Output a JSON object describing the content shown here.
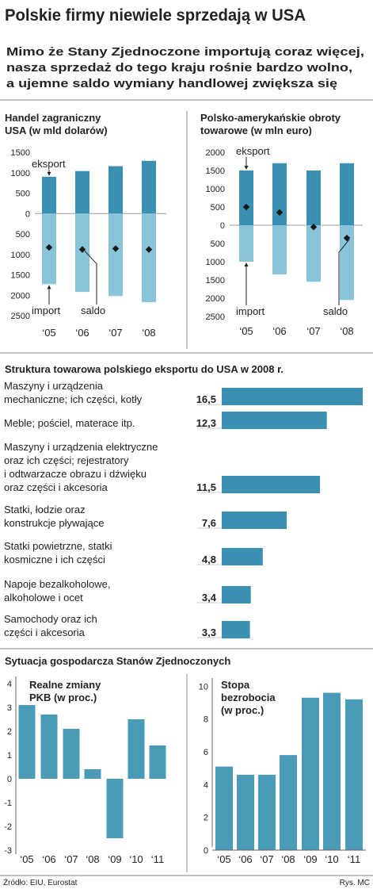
{
  "title": "Polskie firmy niewiele sprzedają w USA",
  "subtitle": [
    "Mimo że Stany Zjednoczone importują coraz więcej,",
    "nasza sprzedaż do tego kraju rośnie bardzo wolno,",
    "a ujemne saldo wymiany handlowej zwiększa się"
  ],
  "section_title": "Sytuacja gospodarcza Stanów Zjednoczonych",
  "source": "Źródło: EIU, Eurostat",
  "credit": "Rys. MC",
  "chart_data": [
    {
      "type": "bar",
      "title": [
        "Handel zagraniczny",
        "USA (w mld dolarów)"
      ],
      "categories": [
        "‘05",
        "‘06",
        "‘07",
        "‘08"
      ],
      "series": [
        {
          "name": "eksport",
          "color": "#3b8fb0",
          "values": [
            900,
            1040,
            1160,
            1290
          ]
        },
        {
          "name": "import",
          "color": "#8ac4da",
          "values": [
            -1730,
            -1920,
            -2020,
            -2170
          ]
        },
        {
          "name": "saldo",
          "color": "#1a1a1a",
          "marker": "diamond",
          "values": [
            -830,
            -880,
            -860,
            -880
          ]
        }
      ],
      "ylim": [
        -2500,
        1500
      ],
      "yticks": [
        1500,
        1000,
        500,
        0,
        {
          "value": -500,
          "label": "500"
        },
        {
          "value": -1000,
          "label": "1000"
        },
        {
          "value": -1500,
          "label": "1500"
        },
        {
          "value": -2000,
          "label": "2000"
        },
        {
          "value": -2500,
          "label": "2500"
        }
      ]
    },
    {
      "type": "bar",
      "title": [
        "Polsko-amerykańskie obroty",
        "towarowe (w mln euro)"
      ],
      "categories": [
        "‘05",
        "‘06",
        "‘07",
        "‘08"
      ],
      "series": [
        {
          "name": "eksport",
          "color": "#3b8fb0",
          "values": [
            1500,
            1700,
            1500,
            1700
          ]
        },
        {
          "name": "import",
          "color": "#8ac4da",
          "values": [
            -1000,
            -1350,
            -1550,
            -2050
          ]
        },
        {
          "name": "saldo",
          "color": "#1a1a1a",
          "marker": "diamond",
          "values": [
            500,
            350,
            -50,
            -350
          ]
        }
      ],
      "ylim": [
        -2500,
        2000
      ],
      "yticks": [
        2000,
        1500,
        1000,
        500,
        0,
        {
          "value": -500,
          "label": "500"
        },
        {
          "value": -1000,
          "label": "1000"
        },
        {
          "value": -1500,
          "label": "1500"
        },
        {
          "value": -2000,
          "label": "2000"
        },
        {
          "value": -2500,
          "label": "2500"
        }
      ]
    },
    {
      "type": "hbar",
      "title": "Struktura towarowa polskiego eksportu do USA w 2008 r.",
      "categories": [
        [
          "Maszyny i urządzenia",
          "mechaniczne; ich części, kotły"
        ],
        [
          "Meble; pościel, materace itp."
        ],
        [
          "Maszyny i urządzenia elektryczne",
          "oraz ich części; rejestratory",
          "i odtwarzacze obrazu i dźwięku",
          "oraz części i akcesoria"
        ],
        [
          "Statki, łodzie oraz",
          "konstrukcje pływające"
        ],
        [
          "Statki powietrzne, statki",
          "kosmiczne i ich części"
        ],
        [
          "Napoje bezalkoholowe,",
          "alkoholowe i ocet"
        ],
        [
          "Samochody oraz ich",
          "części i akcesoria"
        ]
      ],
      "values": [
        16.5,
        12.3,
        11.5,
        7.6,
        4.8,
        3.4,
        3.3
      ],
      "value_labels": [
        "16,5",
        "12,3",
        "11,5",
        "7,6",
        "4,8",
        "3,4",
        "3,3"
      ],
      "color": "#3b8fb0"
    },
    {
      "type": "bar",
      "title": [
        "Realne zmiany",
        "PKB (w proc.)"
      ],
      "categories": [
        "‘05",
        "‘06",
        "‘07",
        "‘08",
        "‘09",
        "‘10",
        "‘11"
      ],
      "values": [
        3.1,
        2.7,
        2.1,
        0.4,
        -2.5,
        2.5,
        1.4
      ],
      "color": "#4a9bb8",
      "ylim": [
        -3.3,
        4.3
      ],
      "yticks": [
        4,
        3,
        2,
        1,
        0,
        -1,
        -2,
        -3
      ]
    },
    {
      "type": "bar",
      "title": [
        "Stopa",
        "bezrobocia",
        "(w proc.)"
      ],
      "categories": [
        "‘05",
        "‘06",
        "‘07",
        "‘08",
        "‘09",
        "‘10",
        "‘11"
      ],
      "values": [
        5.1,
        4.6,
        4.6,
        5.8,
        9.3,
        9.6,
        9.2
      ],
      "color": "#4a9bb8",
      "ylim": [
        0,
        10.5
      ],
      "yticks": [
        0,
        2,
        4,
        6,
        8,
        10
      ]
    }
  ]
}
